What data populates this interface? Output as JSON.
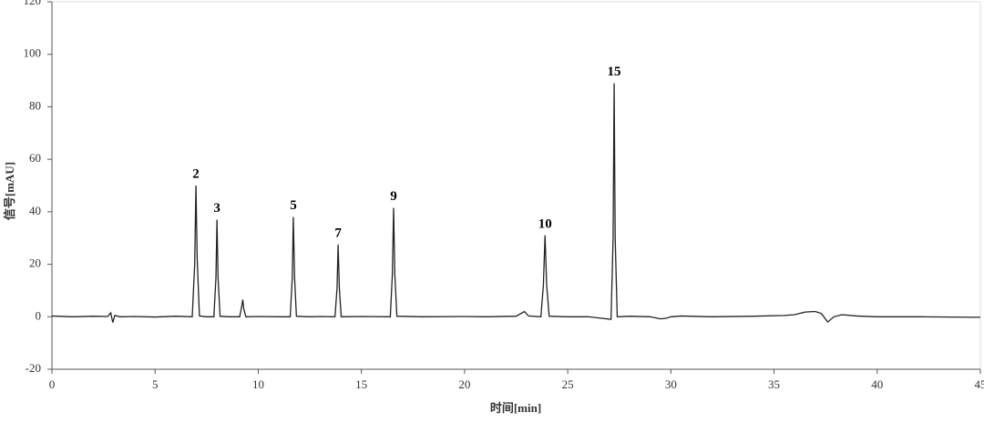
{
  "chart_data": {
    "type": "line",
    "xlabel": "时间[min]",
    "ylabel": "信号[mAU]",
    "xlim": [
      0,
      45
    ],
    "ylim": [
      -20,
      120
    ],
    "xticks": [
      0,
      5,
      10,
      15,
      20,
      25,
      30,
      35,
      40,
      45
    ],
    "yticks": [
      -20,
      0,
      20,
      40,
      60,
      80,
      100,
      120
    ],
    "grid": false,
    "x": [
      0,
      1,
      2,
      2.7,
      2.85,
      2.95,
      3.05,
      3.3,
      4,
      5,
      6,
      6.8,
      6.92,
      6.98,
      7.04,
      7.15,
      7.5,
      7.85,
      7.95,
      8.0,
      8.05,
      8.15,
      8.6,
      9.1,
      9.2,
      9.25,
      9.3,
      9.4,
      10,
      11,
      11.55,
      11.65,
      11.7,
      11.76,
      11.85,
      12.5,
      13,
      13.72,
      13.82,
      13.87,
      13.93,
      14.02,
      15,
      16.4,
      16.5,
      16.56,
      16.62,
      16.72,
      18,
      20,
      21,
      22.5,
      22.9,
      23.1,
      23.7,
      23.82,
      23.9,
      23.98,
      24.1,
      25,
      26,
      27.1,
      27.2,
      27.25,
      27.3,
      27.4,
      28,
      29,
      29.5,
      29.8,
      30,
      30.5,
      32,
      34,
      35.5,
      36,
      36.5,
      37,
      37.3,
      37.6,
      37.9,
      38.3,
      39,
      40,
      42,
      45
    ],
    "series": [
      {
        "color": "#222222",
        "values": [
          0.3,
          0,
          0.2,
          0.1,
          1.5,
          -2.2,
          0.5,
          0,
          0.1,
          -0.1,
          0.2,
          0,
          20,
          50,
          22,
          0.3,
          0,
          0,
          15,
          37,
          15,
          0.2,
          0,
          0,
          4,
          6.5,
          3,
          0,
          0.1,
          0,
          0,
          15,
          38,
          15,
          0.2,
          0,
          0.1,
          0,
          11,
          27.5,
          11,
          0,
          0.1,
          0,
          16,
          41.5,
          16,
          0.2,
          0,
          0.1,
          0,
          0.2,
          2,
          0.3,
          0,
          12,
          31,
          12,
          0.2,
          0,
          0,
          -1,
          30,
          89,
          30,
          0,
          0.2,
          0,
          -0.8,
          -0.5,
          0,
          0.3,
          0,
          0.2,
          0.5,
          0.8,
          1.8,
          2,
          1.2,
          -2,
          0,
          0.8,
          0.3,
          0,
          0,
          -0.2
        ]
      }
    ],
    "annotations": [
      {
        "text": "2",
        "x": 6.98,
        "y": 50
      },
      {
        "text": "3",
        "x": 8.0,
        "y": 37
      },
      {
        "text": "5",
        "x": 11.7,
        "y": 38
      },
      {
        "text": "7",
        "x": 13.87,
        "y": 27.5
      },
      {
        "text": "9",
        "x": 16.56,
        "y": 41.5
      },
      {
        "text": "10",
        "x": 23.9,
        "y": 31
      },
      {
        "text": "15",
        "x": 27.25,
        "y": 89
      }
    ]
  }
}
